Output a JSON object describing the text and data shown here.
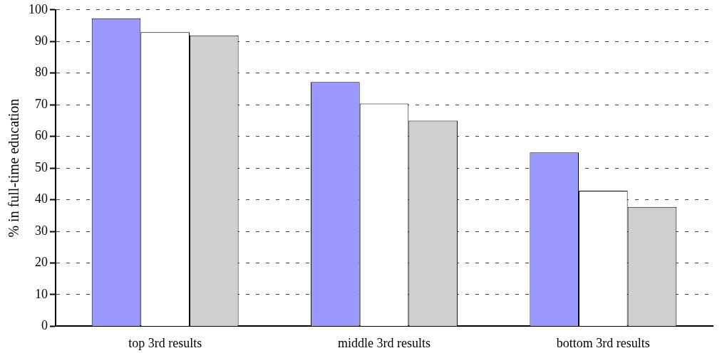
{
  "chart_data": {
    "type": "bar",
    "ylabel": "% in full-time education",
    "categories": [
      "top 3rd results",
      "middle 3rd results",
      "bottom 3rd results"
    ],
    "series": [
      {
        "color": "#9999ff",
        "values": [
          97.3,
          77.2,
          54.9
        ]
      },
      {
        "color": "#ffffff",
        "values": [
          92.9,
          70.4,
          42.8
        ]
      },
      {
        "color": "#cfcfcf",
        "values": [
          91.9,
          65,
          37.7
        ]
      }
    ],
    "ylim": [
      0,
      100
    ],
    "yticks": [
      0,
      10,
      20,
      30,
      40,
      50,
      60,
      70,
      80,
      90,
      100
    ],
    "grid": "y",
    "line_style": "dashed",
    "legend": false
  }
}
